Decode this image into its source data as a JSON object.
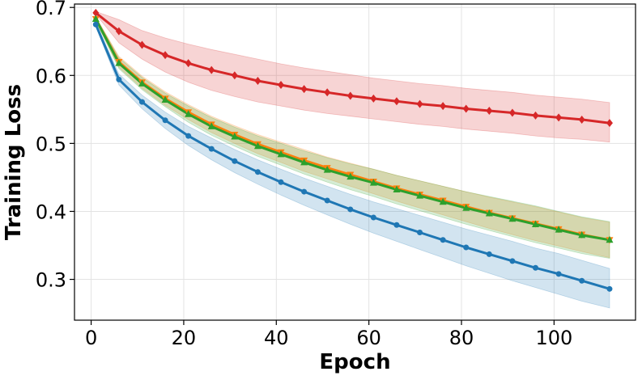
{
  "chart_data": {
    "type": "line",
    "title": "",
    "xlabel": "Epoch",
    "ylabel": "Training Loss",
    "xlim": [
      -3.6,
      117.6
    ],
    "ylim": [
      0.24,
      0.705
    ],
    "xticks": [
      0,
      20,
      40,
      60,
      80,
      100
    ],
    "xtick_labels": [
      "0",
      "20",
      "40",
      "60",
      "80",
      "100"
    ],
    "yticks": [
      0.3,
      0.4,
      0.5,
      0.6,
      0.7
    ],
    "ytick_labels": [
      "0.3",
      "0.4",
      "0.5",
      "0.6",
      "0.7"
    ],
    "grid": true,
    "legend": "none",
    "series": [
      {
        "name": "red",
        "color": "#d62728",
        "marker": "diamond",
        "x": [
          1,
          6,
          11,
          16,
          21,
          26,
          31,
          36,
          41,
          46,
          51,
          56,
          61,
          66,
          71,
          76,
          81,
          86,
          91,
          96,
          101,
          106,
          112
        ],
        "mean": [
          0.692,
          0.665,
          0.645,
          0.63,
          0.618,
          0.608,
          0.6,
          0.592,
          0.586,
          0.58,
          0.575,
          0.57,
          0.566,
          0.562,
          0.558,
          0.555,
          0.551,
          0.548,
          0.545,
          0.541,
          0.538,
          0.535,
          0.53
        ],
        "lower": [
          0.69,
          0.648,
          0.624,
          0.605,
          0.59,
          0.578,
          0.569,
          0.561,
          0.555,
          0.549,
          0.544,
          0.54,
          0.536,
          0.532,
          0.528,
          0.525,
          0.521,
          0.518,
          0.515,
          0.511,
          0.508,
          0.506,
          0.502
        ],
        "upper": [
          0.694,
          0.682,
          0.666,
          0.655,
          0.646,
          0.638,
          0.631,
          0.624,
          0.617,
          0.611,
          0.606,
          0.601,
          0.596,
          0.592,
          0.588,
          0.585,
          0.581,
          0.578,
          0.575,
          0.571,
          0.568,
          0.565,
          0.56
        ]
      },
      {
        "name": "orange",
        "color": "#ff7f0e",
        "marker": "triangle-down",
        "x": [
          1,
          6,
          11,
          16,
          21,
          26,
          31,
          36,
          41,
          46,
          51,
          56,
          61,
          66,
          71,
          76,
          81,
          86,
          91,
          96,
          101,
          106,
          112
        ],
        "mean": [
          0.683,
          0.62,
          0.59,
          0.566,
          0.546,
          0.528,
          0.513,
          0.499,
          0.487,
          0.475,
          0.464,
          0.454,
          0.444,
          0.434,
          0.425,
          0.416,
          0.407,
          0.398,
          0.39,
          0.382,
          0.374,
          0.366,
          0.358
        ],
        "lower": [
          0.68,
          0.612,
          0.581,
          0.556,
          0.535,
          0.516,
          0.5,
          0.485,
          0.472,
          0.459,
          0.448,
          0.437,
          0.426,
          0.415,
          0.405,
          0.395,
          0.385,
          0.375,
          0.366,
          0.357,
          0.349,
          0.341,
          0.332
        ],
        "upper": [
          0.686,
          0.628,
          0.599,
          0.576,
          0.557,
          0.54,
          0.526,
          0.513,
          0.502,
          0.491,
          0.48,
          0.471,
          0.462,
          0.453,
          0.445,
          0.437,
          0.429,
          0.421,
          0.414,
          0.407,
          0.399,
          0.391,
          0.384
        ]
      },
      {
        "name": "green",
        "color": "#2ca02c",
        "marker": "triangle-up",
        "x": [
          1,
          6,
          11,
          16,
          21,
          26,
          31,
          36,
          41,
          46,
          51,
          56,
          61,
          66,
          71,
          76,
          81,
          86,
          91,
          96,
          101,
          106,
          112
        ],
        "mean": [
          0.683,
          0.618,
          0.588,
          0.564,
          0.543,
          0.525,
          0.51,
          0.496,
          0.484,
          0.472,
          0.461,
          0.451,
          0.442,
          0.432,
          0.423,
          0.414,
          0.405,
          0.397,
          0.389,
          0.381,
          0.373,
          0.365,
          0.358
        ],
        "lower": [
          0.68,
          0.61,
          0.579,
          0.554,
          0.531,
          0.512,
          0.496,
          0.481,
          0.468,
          0.455,
          0.443,
          0.432,
          0.422,
          0.411,
          0.401,
          0.391,
          0.381,
          0.372,
          0.363,
          0.354,
          0.346,
          0.338,
          0.331
        ],
        "upper": [
          0.686,
          0.626,
          0.597,
          0.574,
          0.555,
          0.538,
          0.524,
          0.511,
          0.5,
          0.489,
          0.479,
          0.47,
          0.462,
          0.453,
          0.445,
          0.437,
          0.429,
          0.422,
          0.415,
          0.408,
          0.4,
          0.392,
          0.385
        ]
      },
      {
        "name": "blue",
        "color": "#1f77b4",
        "marker": "circle",
        "x": [
          1,
          6,
          11,
          16,
          21,
          26,
          31,
          36,
          41,
          46,
          51,
          56,
          61,
          66,
          71,
          76,
          81,
          86,
          91,
          96,
          101,
          106,
          112
        ],
        "mean": [
          0.675,
          0.594,
          0.561,
          0.534,
          0.511,
          0.492,
          0.474,
          0.458,
          0.443,
          0.429,
          0.416,
          0.403,
          0.391,
          0.38,
          0.369,
          0.358,
          0.347,
          0.337,
          0.327,
          0.317,
          0.308,
          0.298,
          0.286
        ],
        "lower": [
          0.672,
          0.586,
          0.551,
          0.522,
          0.497,
          0.476,
          0.457,
          0.44,
          0.424,
          0.409,
          0.395,
          0.381,
          0.368,
          0.356,
          0.344,
          0.332,
          0.32,
          0.309,
          0.298,
          0.288,
          0.278,
          0.268,
          0.258
        ],
        "upper": [
          0.678,
          0.602,
          0.571,
          0.546,
          0.525,
          0.508,
          0.491,
          0.476,
          0.462,
          0.449,
          0.437,
          0.425,
          0.414,
          0.404,
          0.394,
          0.384,
          0.374,
          0.365,
          0.356,
          0.346,
          0.338,
          0.328,
          0.316
        ]
      }
    ]
  }
}
